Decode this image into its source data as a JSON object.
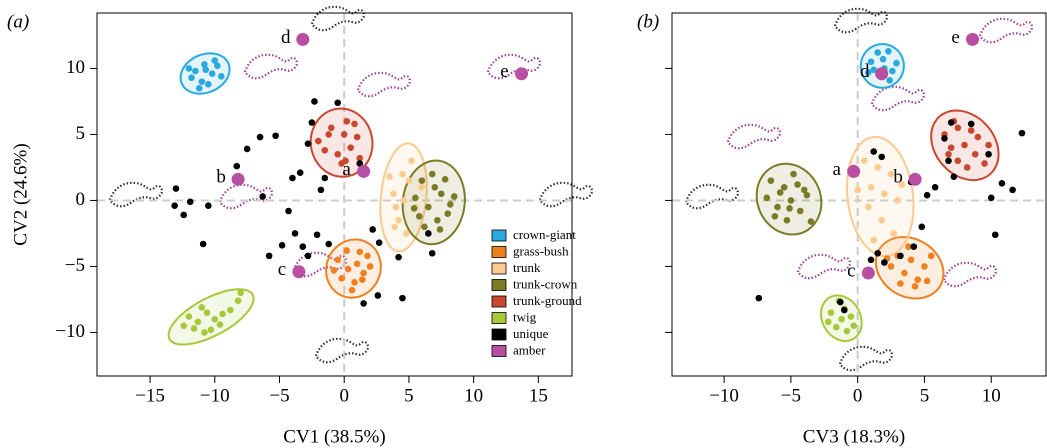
{
  "chart_data": [
    {
      "type": "scatter",
      "panel_label": "(a)",
      "xlabel": "CV1 (38.5%)",
      "ylabel": "CV2 (24.6%)",
      "xlim": [
        -19.1,
        17.6
      ],
      "ylim": [
        -13.3,
        14.2
      ],
      "xticks": [
        {
          "value": -15,
          "label": "−15"
        },
        {
          "value": -10,
          "label": "−10"
        },
        {
          "value": -5,
          "label": "−5"
        },
        0,
        5,
        10,
        15
      ],
      "yticks": [
        {
          "value": -10,
          "label": "−10"
        },
        {
          "value": -5,
          "label": "−5"
        },
        0,
        5,
        10
      ],
      "ytick_labels": true,
      "zero_lines": true,
      "legend": "lower right",
      "series": [
        {
          "name": "crown-giant",
          "color": "#29a9df",
          "ellipse": true,
          "x": [
            -11.5,
            -10.8,
            -10.2,
            -11,
            -9.8,
            -11.8,
            -10.5,
            -9.5,
            -11.2,
            -10,
            -12,
            -10.7
          ],
          "values": [
            9.8,
            10.3,
            9.6,
            9,
            10.2,
            9.3,
            8.8,
            9.4,
            8.5,
            10.6,
            10,
            9.9
          ]
        },
        {
          "name": "grass-bush",
          "color": "#f07f1e",
          "ellipse": true,
          "x": [
            -0.5,
            0.3,
            1,
            1.5,
            0.8,
            1.8,
            0.2,
            -0.2,
            1.2,
            2,
            0.6,
            1.4,
            -0.8
          ],
          "values": [
            -4.5,
            -5.2,
            -4.8,
            -5.5,
            -6.2,
            -4.2,
            -3.8,
            -5.9,
            -3.9,
            -5,
            -6.8,
            -6,
            -5.3
          ]
        },
        {
          "name": "trunk",
          "color": "#fcc98e",
          "ellipse": true,
          "x": [
            4.5,
            5,
            3.8,
            5.5,
            4.2,
            4.8,
            3.5,
            5.2,
            4,
            6,
            4.6,
            3.9
          ],
          "values": [
            2,
            1.5,
            0.5,
            -0.5,
            -1.5,
            -2.5,
            1.8,
            3,
            -0.5,
            1,
            0,
            -2
          ]
        },
        {
          "name": "trunk-crown",
          "color": "#7b7b26",
          "ellipse": true,
          "x": [
            6,
            7,
            7.5,
            6.5,
            8,
            5.5,
            7.2,
            6.8,
            8.5,
            5.8,
            7.8,
            6.2,
            8.2,
            5.4,
            7.4
          ],
          "values": [
            1.5,
            1,
            0.5,
            -0.5,
            -1,
            0.2,
            -1.5,
            2,
            0.3,
            -1.2,
            1.6,
            -2,
            -0.3,
            -0.6,
            -2.2
          ]
        },
        {
          "name": "trunk-ground",
          "color": "#c9472f",
          "ellipse": true,
          "x": [
            -2,
            -1,
            0,
            1,
            -0.5,
            0.5,
            -1.5,
            0.2,
            1.2,
            -0.2,
            -1.2,
            0.8,
            0.1
          ],
          "values": [
            4.5,
            5.5,
            5,
            4.8,
            3.5,
            4,
            3.8,
            6,
            3.2,
            2.8,
            5,
            5.8,
            3
          ]
        },
        {
          "name": "twig",
          "color": "#a8c83a",
          "ellipse": true,
          "x": [
            -12,
            -11.3,
            -10.6,
            -10,
            -9.4,
            -8.8,
            -11.6,
            -10.3,
            -9.6,
            -8.2,
            -8,
            -11,
            -12.4,
            -10.8
          ],
          "values": [
            -8.8,
            -9.2,
            -8.5,
            -9,
            -8.6,
            -8.3,
            -9.7,
            -9.8,
            -9.4,
            -7.6,
            -7,
            -8.1,
            -9.5,
            -10
          ]
        },
        {
          "name": "unique",
          "color": "#000000",
          "ellipse": false,
          "x": [
            -13,
            -13.1,
            -12.4,
            -11.9,
            -10.9,
            -10.5,
            -8.3,
            -7.5,
            -6.5,
            -5.3,
            -6.3,
            -5.8,
            -4.3,
            -4.8,
            -3.2,
            -2.8,
            -2.1,
            -1.2,
            -3.8,
            -4,
            -2.5,
            -2.3,
            -3.4,
            -1.8,
            -1.5,
            1.2,
            2.2,
            2.7,
            2.6,
            4.2,
            4.5,
            6.5,
            6.8,
            1.5,
            -0.5,
            -2.8
          ],
          "values": [
            0.9,
            -0.4,
            -1.1,
            -0.1,
            -3.3,
            -0.4,
            2.6,
            3.9,
            4.8,
            4.9,
            0.3,
            -4.2,
            -0.8,
            -3.4,
            -3.5,
            -4.2,
            -2.6,
            -3.3,
            -2.5,
            1.7,
            5.9,
            7.5,
            2.1,
            0.8,
            1.7,
            2.8,
            -2.2,
            -3.2,
            -7.2,
            -4.3,
            -7.4,
            -2.5,
            -4,
            -7.8,
            7.4,
            4.3
          ]
        },
        {
          "name": "amber",
          "color": "#b94fa3",
          "ellipse": false,
          "big": true,
          "x": [
            1.5,
            -8.2,
            -3.5,
            -3.2,
            13.7
          ],
          "values": [
            2.2,
            1.6,
            -5.4,
            12.2,
            9.6
          ],
          "point_labels": [
            "a",
            "b",
            "c",
            "d",
            "e"
          ]
        }
      ]
    },
    {
      "type": "scatter",
      "panel_label": "(b)",
      "xlabel": "CV3 (18.3%)",
      "xlim": [
        -13.9,
        14.1
      ],
      "ylim": [
        -13.3,
        14.2
      ],
      "xticks": [
        {
          "value": -10,
          "label": "−10"
        },
        {
          "value": -5,
          "label": "−5"
        },
        0,
        5,
        10
      ],
      "yticks": [
        -10,
        -5,
        0,
        5,
        10
      ],
      "ytick_labels": false,
      "zero_lines": true,
      "series": [
        {
          "color": "#29a9df",
          "ellipse": true,
          "x": [
            1.5,
            2.3,
            1,
            2,
            2.6,
            1.7,
            1.2,
            2.4,
            1.9,
            0.8,
            2.9
          ],
          "values": [
            11.2,
            11.3,
            10.5,
            10,
            9.8,
            9.5,
            9.9,
            9.1,
            10.7,
            9.7,
            10.4
          ]
        },
        {
          "color": "#f07f1e",
          "ellipse": true,
          "x": [
            3,
            4,
            5,
            3.5,
            4.5,
            2.5,
            5.5,
            3.8,
            4.3,
            2.2,
            5.2,
            3.2
          ],
          "values": [
            -4.2,
            -4.5,
            -5,
            -5.5,
            -6,
            -5,
            -4.2,
            -3.5,
            -6.5,
            -4.4,
            -6.1,
            -6.3
          ]
        },
        {
          "color": "#fcc98e",
          "ellipse": true,
          "x": [
            0.5,
            1.5,
            2.5,
            1,
            2,
            3,
            0.8,
            1.8,
            2.7,
            1.2,
            0,
            3.3
          ],
          "values": [
            3,
            2.5,
            2,
            1,
            0.5,
            0,
            -0.5,
            -1.5,
            -2.5,
            -3,
            0.8,
            1.2
          ]
        },
        {
          "color": "#7b7b26",
          "ellipse": true,
          "x": [
            -6.5,
            -5.5,
            -4.5,
            -3.8,
            -5,
            -6,
            -4.3,
            -5.3,
            -6.8,
            -3.5,
            -4.8,
            -6.2,
            -4,
            -5.8,
            -5.1
          ],
          "values": [
            1.5,
            1,
            1.2,
            0.4,
            0,
            -0.5,
            -0.8,
            -1.5,
            0.2,
            -1.6,
            2,
            -1.2,
            0.8,
            0.6,
            -0.6
          ]
        },
        {
          "color": "#c9472f",
          "ellipse": true,
          "x": [
            6.5,
            7.5,
            8.5,
            7,
            8,
            9,
            7.5,
            8.8,
            6.8,
            9.5,
            8.2,
            7.2,
            9.8
          ],
          "values": [
            5,
            5.5,
            5.3,
            4,
            4.2,
            4.8,
            3,
            3.5,
            3.5,
            2.8,
            2.5,
            6,
            4.2
          ]
        },
        {
          "color": "#a8c83a",
          "ellipse": true,
          "x": [
            -2,
            -1.2,
            -0.5,
            -1.6,
            -0.8,
            -1.4,
            -2.2,
            -0.3,
            -1
          ],
          "values": [
            -8.5,
            -9,
            -8.8,
            -9.6,
            -9.9,
            -7.6,
            -9.2,
            -9.5,
            -8.2
          ]
        },
        {
          "color": "#000000",
          "ellipse": false,
          "x": [
            -7.4,
            -1.3,
            -1,
            1,
            1.5,
            2,
            3.2,
            4.2,
            4.8,
            4,
            5.2,
            5.8,
            6.5,
            6.8,
            7,
            8.5,
            9.8,
            10,
            10.3,
            10.8,
            11.6,
            12.3,
            1.2,
            1.8,
            7.2
          ],
          "values": [
            -7.4,
            -7.7,
            -8.3,
            -4.5,
            -4,
            -4.7,
            -4.2,
            -3.5,
            -2,
            1.4,
            0.4,
            1,
            4.7,
            3,
            5.9,
            5.8,
            3.5,
            0.2,
            -2.6,
            1.3,
            0.8,
            5.1,
            3.7,
            3.3,
            1.8
          ]
        },
        {
          "color": "#b94fa3",
          "ellipse": false,
          "big": true,
          "x": [
            -0.3,
            4.3,
            0.8,
            1.8,
            8.6
          ],
          "values": [
            2.2,
            1.6,
            -5.5,
            9.6,
            12.2
          ],
          "point_labels": [
            "a",
            "b",
            "c",
            "d",
            "e"
          ]
        }
      ]
    }
  ]
}
